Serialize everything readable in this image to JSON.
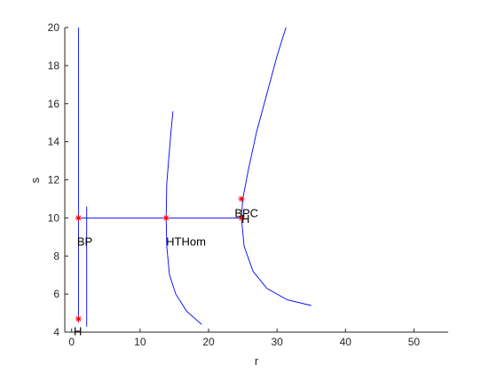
{
  "colors": {
    "curve": "#0000ff",
    "marker": "#ff0000",
    "axis": "#262626",
    "background": "#ffffff"
  },
  "chart_data": {
    "type": "line",
    "xlabel": "r",
    "ylabel": "s",
    "xlim": [
      -1,
      55
    ],
    "ylim": [
      4,
      20
    ],
    "xticks": [
      0,
      10,
      20,
      30,
      40,
      50
    ],
    "yticks": [
      4,
      6,
      8,
      10,
      12,
      14,
      16,
      18,
      20
    ],
    "grid": false,
    "series": [
      {
        "x": [
          1,
          1
        ],
        "y": [
          4.5,
          20
        ]
      },
      {
        "x": [
          2.2,
          2.2
        ],
        "y": [
          4.3,
          10.6
        ]
      },
      {
        "x": [
          1,
          24.8
        ],
        "y": [
          10,
          10
        ]
      },
      {
        "x": [
          14.8,
          14.5,
          14.2,
          13.9,
          13.8,
          13.9,
          14.3,
          15.2,
          16.8,
          19.0
        ],
        "y": [
          15.6,
          14.5,
          13.2,
          11.8,
          10.0,
          8.5,
          7.0,
          6.0,
          5.1,
          4.4
        ]
      },
      {
        "x": [
          31.3,
          30.0,
          28.5,
          27.0,
          25.8,
          25.0,
          24.8,
          25.2,
          26.5,
          28.5,
          31.5,
          35.0
        ],
        "y": [
          20.0,
          18.5,
          16.5,
          14.5,
          12.5,
          11.0,
          10.0,
          8.5,
          7.2,
          6.3,
          5.7,
          5.4
        ]
      }
    ],
    "points": [
      {
        "x": 1,
        "y": 10
      },
      {
        "x": 13.8,
        "y": 10
      },
      {
        "x": 24.8,
        "y": 10
      },
      {
        "x": 24.8,
        "y": 11
      },
      {
        "x": 1,
        "y": 4.7
      }
    ],
    "annotations": [
      {
        "text": "BP",
        "x": 0.8,
        "y": 9.2
      },
      {
        "text": "HTHom",
        "x": 13.8,
        "y": 9.2
      },
      {
        "text": "BPC",
        "x": 23.8,
        "y": 10.7
      },
      {
        "text": "H",
        "x": 24.8,
        "y": 10.4
      },
      {
        "text": "H",
        "x": 0.3,
        "y": 4.5
      }
    ]
  }
}
